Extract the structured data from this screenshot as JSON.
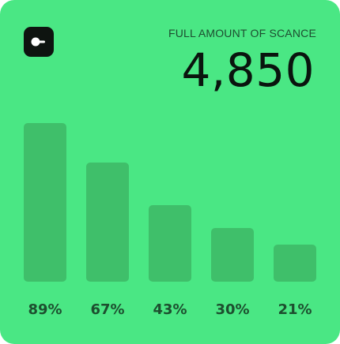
{
  "card": {
    "label": "FULL AMOUNT OF SCANCE",
    "total": "4,850",
    "logo_icon": "toggle-logo-icon"
  },
  "chart_data": {
    "type": "bar",
    "values": [
      89,
      67,
      43,
      30,
      21
    ],
    "value_labels": [
      "89%",
      "67%",
      "43%",
      "30%",
      "21%"
    ],
    "ylim": [
      0,
      100
    ],
    "grid": false
  },
  "colors": {
    "card_bg": "#4ae784",
    "bar": "#3fbf6a",
    "logo_bg": "#0e1410"
  }
}
